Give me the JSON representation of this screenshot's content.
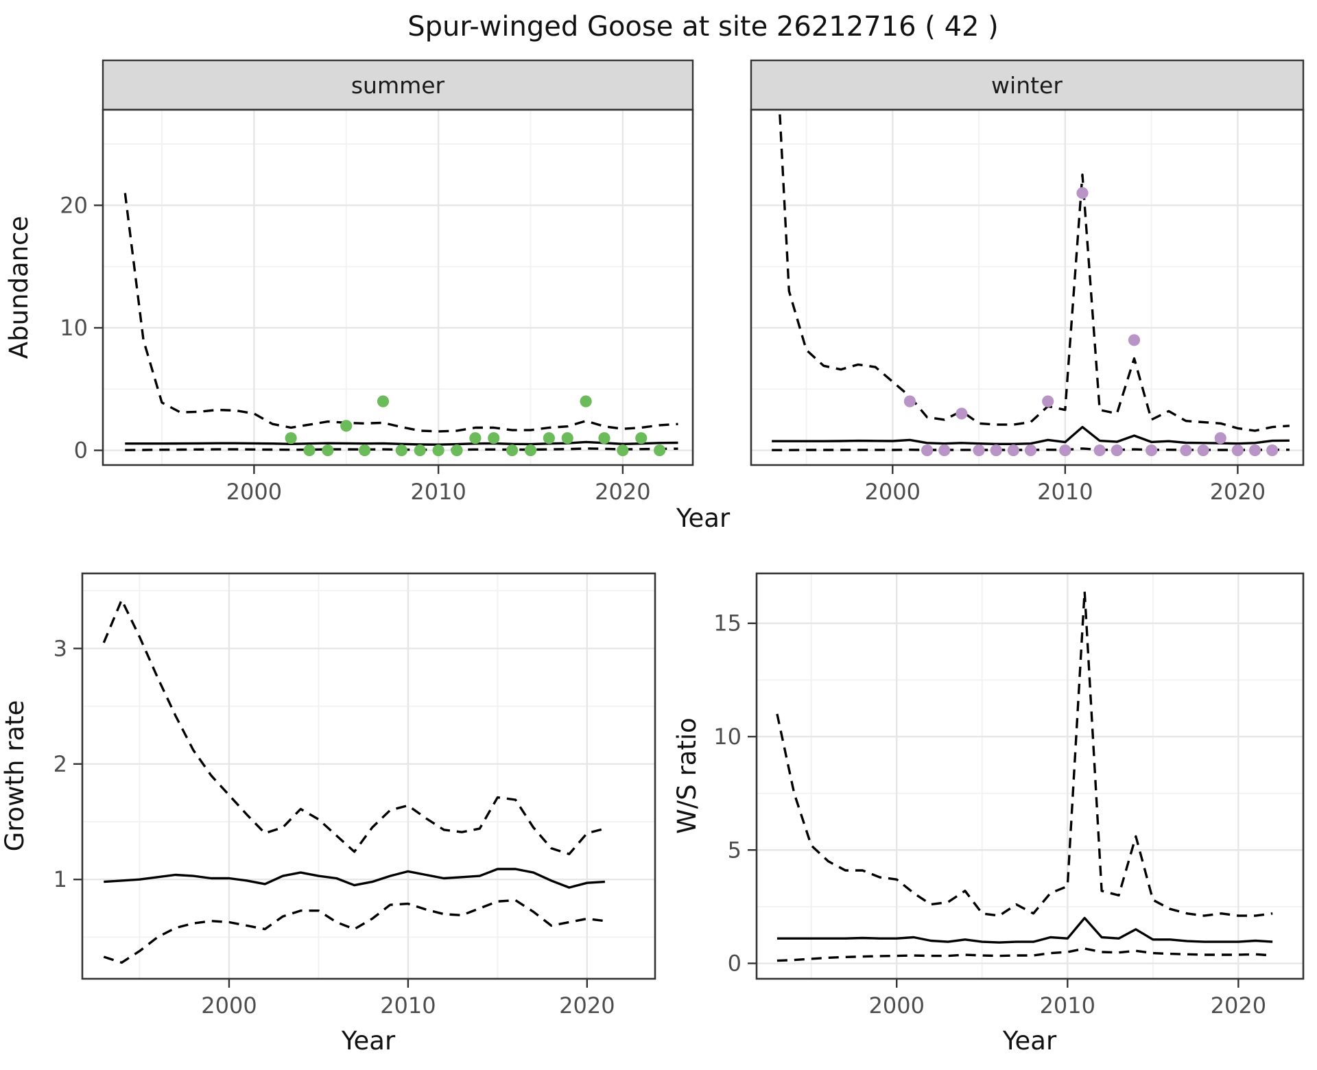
{
  "title": "Spur-winged Goose at site 26212716 ( 42 )",
  "axis_titles": {
    "abundance": "Abundance",
    "growth": "Growth rate",
    "ws": "W/S ratio",
    "year_top": "Year",
    "year_bottom_left": "Year",
    "year_bottom_right": "Year"
  },
  "colors": {
    "summer_point": "#6cbb5a",
    "winter_point": "#b995c7",
    "line": "#000000",
    "grid_major": "#e6e6e6",
    "grid_minor": "#f1f1f1",
    "strip_bg": "#d9d9d9",
    "panel_border": "#333333",
    "tick_text": "#4d4d4d"
  },
  "chart_data": {
    "type": "line",
    "x_domain": [
      1991.8,
      2023.8
    ],
    "x_ticks": [
      2000,
      2010,
      2020
    ],
    "x_minor": [
      1995,
      2005,
      2015
    ],
    "panels": [
      {
        "key": "abundance_summer",
        "strip": "summer",
        "ylabel": "Abundance",
        "y_domain": [
          -1.2,
          27.8
        ],
        "y_ticks": [
          0,
          10,
          20
        ],
        "y_minor": [
          5,
          15,
          25
        ],
        "years": [
          1993,
          1994,
          1995,
          1996,
          1997,
          1998,
          1999,
          2000,
          2001,
          2002,
          2003,
          2004,
          2005,
          2006,
          2007,
          2008,
          2009,
          2010,
          2011,
          2012,
          2013,
          2014,
          2015,
          2016,
          2017,
          2018,
          2019,
          2020,
          2021,
          2022,
          2023
        ],
        "upper_ci": [
          21,
          9,
          3.9,
          3.1,
          3.15,
          3.3,
          3.25,
          3.0,
          2.15,
          1.85,
          2.1,
          2.35,
          2.25,
          2.2,
          2.25,
          1.9,
          1.6,
          1.55,
          1.6,
          1.85,
          1.85,
          1.65,
          1.65,
          1.85,
          1.95,
          2.4,
          1.95,
          1.75,
          1.85,
          2.05,
          2.15
        ],
        "fit": [
          0.55,
          0.55,
          0.55,
          0.56,
          0.57,
          0.58,
          0.58,
          0.57,
          0.55,
          0.52,
          0.55,
          0.58,
          0.57,
          0.55,
          0.57,
          0.52,
          0.48,
          0.47,
          0.5,
          0.55,
          0.57,
          0.52,
          0.5,
          0.55,
          0.58,
          0.68,
          0.6,
          0.52,
          0.55,
          0.6,
          0.62
        ],
        "lower_ci": [
          0.02,
          0.03,
          0.05,
          0.06,
          0.07,
          0.08,
          0.08,
          0.07,
          0.06,
          0.05,
          0.06,
          0.08,
          0.08,
          0.07,
          0.08,
          0.06,
          0.05,
          0.05,
          0.05,
          0.07,
          0.07,
          0.06,
          0.06,
          0.08,
          0.1,
          0.15,
          0.12,
          0.09,
          0.1,
          0.12,
          0.13
        ],
        "points_color_key": "summer_point",
        "points": [
          [
            2002,
            1
          ],
          [
            2003,
            0
          ],
          [
            2004,
            0
          ],
          [
            2005,
            2
          ],
          [
            2006,
            0
          ],
          [
            2007,
            4
          ],
          [
            2008,
            0
          ],
          [
            2009,
            0
          ],
          [
            2010,
            0
          ],
          [
            2011,
            0
          ],
          [
            2012,
            1
          ],
          [
            2013,
            1
          ],
          [
            2014,
            0
          ],
          [
            2015,
            0
          ],
          [
            2016,
            1
          ],
          [
            2017,
            1
          ],
          [
            2018,
            4
          ],
          [
            2019,
            1
          ],
          [
            2020,
            0
          ],
          [
            2021,
            1
          ],
          [
            2022,
            0
          ]
        ]
      },
      {
        "key": "abundance_winter",
        "strip": "winter",
        "ylabel": "Abundance",
        "y_domain": [
          -1.2,
          27.8
        ],
        "y_ticks": [],
        "y_minor": [
          5,
          15,
          25
        ],
        "y_grid_major": [
          0,
          10,
          20
        ],
        "years": [
          1993,
          1994,
          1995,
          1996,
          1997,
          1998,
          1999,
          2000,
          2001,
          2002,
          2003,
          2004,
          2005,
          2006,
          2007,
          2008,
          2009,
          2010,
          2011,
          2012,
          2013,
          2014,
          2015,
          2016,
          2017,
          2018,
          2019,
          2020,
          2021,
          2022,
          2023
        ],
        "upper_ci": [
          40,
          13,
          8.2,
          6.9,
          6.6,
          7.0,
          6.8,
          5.6,
          4.4,
          2.7,
          2.5,
          3.2,
          2.2,
          2.1,
          2.1,
          2.3,
          3.6,
          3.3,
          22.5,
          3.3,
          3.0,
          7.5,
          2.5,
          3.2,
          2.4,
          2.3,
          2.2,
          1.8,
          1.6,
          1.9,
          2.0
        ],
        "fit": [
          0.75,
          0.75,
          0.75,
          0.75,
          0.76,
          0.78,
          0.77,
          0.76,
          0.85,
          0.6,
          0.55,
          0.6,
          0.55,
          0.52,
          0.52,
          0.55,
          0.85,
          0.67,
          1.9,
          0.78,
          0.7,
          1.2,
          0.68,
          0.75,
          0.62,
          0.6,
          0.58,
          0.55,
          0.6,
          0.78,
          0.8
        ],
        "lower_ci": [
          0.02,
          0.02,
          0.03,
          0.03,
          0.03,
          0.04,
          0.04,
          0.03,
          0.05,
          0.03,
          0.03,
          0.04,
          0.03,
          0.03,
          0.03,
          0.03,
          0.05,
          0.04,
          0.15,
          0.05,
          0.04,
          0.08,
          0.04,
          0.05,
          0.04,
          0.04,
          0.03,
          0.03,
          0.03,
          0.05,
          0.05
        ],
        "points_color_key": "winter_point",
        "points": [
          [
            2001,
            4
          ],
          [
            2002,
            0
          ],
          [
            2003,
            0
          ],
          [
            2004,
            3
          ],
          [
            2005,
            0
          ],
          [
            2006,
            0
          ],
          [
            2007,
            0
          ],
          [
            2008,
            0
          ],
          [
            2009,
            4
          ],
          [
            2010,
            0
          ],
          [
            2011,
            21
          ],
          [
            2012,
            0
          ],
          [
            2013,
            0
          ],
          [
            2014,
            9
          ],
          [
            2015,
            0
          ],
          [
            2017,
            0
          ],
          [
            2018,
            0
          ],
          [
            2019,
            1
          ],
          [
            2020,
            0
          ],
          [
            2021,
            0
          ],
          [
            2022,
            0
          ]
        ]
      },
      {
        "key": "growth",
        "strip": null,
        "ylabel": "Growth rate",
        "y_domain": [
          0.14,
          3.65
        ],
        "y_ticks": [
          1,
          2,
          3
        ],
        "y_minor": [
          0.5,
          1.5,
          2.5,
          3.5
        ],
        "years": [
          1993,
          1994,
          1995,
          1996,
          1997,
          1998,
          1999,
          2000,
          2001,
          2002,
          2003,
          2004,
          2005,
          2006,
          2007,
          2008,
          2009,
          2010,
          2011,
          2012,
          2013,
          2014,
          2015,
          2016,
          2017,
          2018,
          2019,
          2020,
          2021
        ],
        "upper_ci": [
          3.05,
          3.42,
          3.1,
          2.75,
          2.42,
          2.12,
          1.9,
          1.73,
          1.56,
          1.4,
          1.45,
          1.61,
          1.52,
          1.38,
          1.24,
          1.45,
          1.6,
          1.64,
          1.53,
          1.43,
          1.41,
          1.44,
          1.71,
          1.69,
          1.45,
          1.27,
          1.22,
          1.4,
          1.44
        ],
        "fit": [
          0.98,
          0.99,
          1.0,
          1.02,
          1.04,
          1.03,
          1.01,
          1.01,
          0.99,
          0.96,
          1.03,
          1.06,
          1.03,
          1.01,
          0.95,
          0.98,
          1.03,
          1.07,
          1.04,
          1.01,
          1.02,
          1.03,
          1.09,
          1.09,
          1.06,
          0.99,
          0.93,
          0.97,
          0.98
        ],
        "lower_ci": [
          0.33,
          0.28,
          0.38,
          0.5,
          0.58,
          0.62,
          0.64,
          0.63,
          0.6,
          0.57,
          0.68,
          0.73,
          0.73,
          0.63,
          0.57,
          0.66,
          0.78,
          0.79,
          0.74,
          0.7,
          0.69,
          0.75,
          0.81,
          0.82,
          0.72,
          0.6,
          0.63,
          0.66,
          0.64
        ],
        "points": []
      },
      {
        "key": "ws",
        "strip": null,
        "ylabel": "W/S ratio",
        "y_domain": [
          -0.68,
          17.2
        ],
        "y_ticks": [
          0,
          5,
          10,
          15
        ],
        "y_minor": [
          2.5,
          7.5,
          12.5
        ],
        "years": [
          1993,
          1994,
          1995,
          1996,
          1997,
          1998,
          1999,
          2000,
          2001,
          2002,
          2003,
          2004,
          2005,
          2006,
          2007,
          2008,
          2009,
          2010,
          2011,
          2012,
          2013,
          2014,
          2015,
          2016,
          2017,
          2018,
          2019,
          2020,
          2021,
          2022
        ],
        "upper_ci": [
          11.0,
          7.5,
          5.2,
          4.5,
          4.1,
          4.1,
          3.8,
          3.7,
          3.1,
          2.6,
          2.7,
          3.2,
          2.2,
          2.1,
          2.6,
          2.2,
          3.1,
          3.4,
          16.4,
          3.2,
          3.0,
          5.6,
          2.8,
          2.4,
          2.2,
          2.1,
          2.2,
          2.1,
          2.1,
          2.2
        ],
        "fit": [
          1.1,
          1.1,
          1.1,
          1.1,
          1.1,
          1.12,
          1.1,
          1.1,
          1.15,
          1.0,
          0.95,
          1.05,
          0.95,
          0.92,
          0.95,
          0.95,
          1.15,
          1.1,
          2.0,
          1.15,
          1.1,
          1.5,
          1.05,
          1.05,
          0.98,
          0.95,
          0.95,
          0.95,
          1.0,
          0.95
        ],
        "lower_ci": [
          0.12,
          0.15,
          0.2,
          0.25,
          0.28,
          0.3,
          0.32,
          0.33,
          0.35,
          0.33,
          0.33,
          0.38,
          0.35,
          0.33,
          0.35,
          0.35,
          0.45,
          0.5,
          0.65,
          0.5,
          0.48,
          0.55,
          0.45,
          0.42,
          0.4,
          0.38,
          0.38,
          0.38,
          0.4,
          0.35
        ],
        "points": []
      }
    ]
  }
}
